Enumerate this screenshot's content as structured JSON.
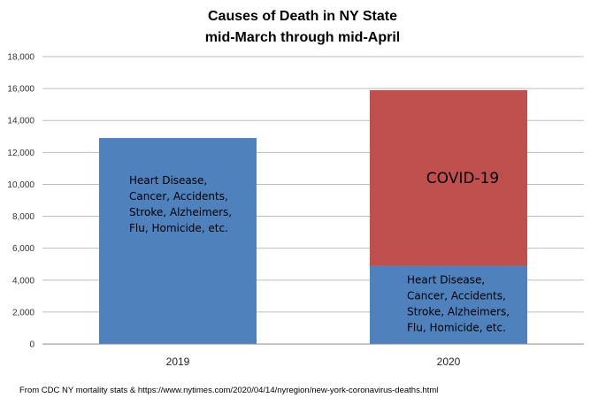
{
  "chart_data": {
    "type": "bar",
    "stacked": true,
    "title": [
      "Causes of Death in NY State",
      "mid-March through mid-April"
    ],
    "categories": [
      "2019",
      "2020"
    ],
    "series": [
      {
        "label_lines": [
          "Heart Disease,",
          "Cancer, Accidents,",
          "Stroke, Alzheimers,",
          "Flu, Homicide, etc."
        ],
        "color": "#4F81BD",
        "values": [
          12900,
          4900
        ]
      },
      {
        "label_lines": [
          "COVID-19"
        ],
        "color": "#C0504D",
        "values": [
          0,
          11000
        ]
      }
    ],
    "ylim": [
      0,
      18000
    ],
    "yticks": [
      "0",
      "2,000",
      "4,000",
      "6,000",
      "8,000",
      "10,000",
      "12,000",
      "14,000",
      "16,000",
      "18,000"
    ],
    "grid": true,
    "xlabel": "",
    "ylabel": ""
  },
  "source_note": "From CDC NY mortality stats & https://www.nytimes.com/2020/04/14/nyregion/new-york-coronavirus-deaths.html"
}
